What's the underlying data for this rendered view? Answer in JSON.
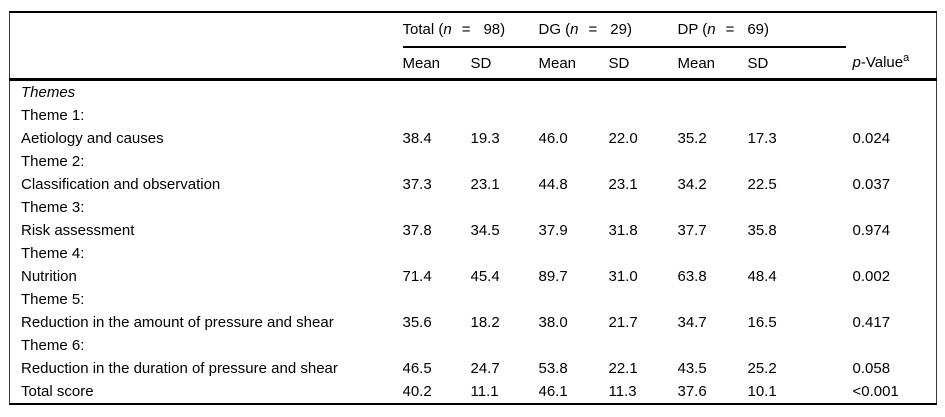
{
  "table": {
    "header": {
      "groups": [
        {
          "prefix": "Total (",
          "var": "n",
          "eq": "=",
          "count": "98)"
        },
        {
          "prefix": "DG (",
          "var": "n",
          "eq": "=",
          "count": "29)"
        },
        {
          "prefix": "DP (",
          "var": "n",
          "eq": "=",
          "count": "69)"
        }
      ],
      "sub": [
        "Mean",
        "SD",
        "Mean",
        "SD",
        "Mean",
        "SD"
      ],
      "p_value": {
        "italic": "p",
        "text": "-Value",
        "sup": "a"
      }
    },
    "rows": [
      {
        "label": "Themes",
        "values": [
          "",
          "",
          "",
          "",
          "",
          "",
          ""
        ]
      },
      {
        "label": "Theme 1:",
        "values": [
          "",
          "",
          "",
          "",
          "",
          "",
          ""
        ]
      },
      {
        "label": "Aetiology and causes",
        "values": [
          "38.4",
          "19.3",
          "46.0",
          "22.0",
          "35.2",
          "17.3",
          "0.024"
        ]
      },
      {
        "label": "Theme 2:",
        "values": [
          "",
          "",
          "",
          "",
          "",
          "",
          ""
        ]
      },
      {
        "label": "Classification and observation",
        "values": [
          "37.3",
          "23.1",
          "44.8",
          "23.1",
          "34.2",
          "22.5",
          "0.037"
        ]
      },
      {
        "label": "Theme 3:",
        "values": [
          "",
          "",
          "",
          "",
          "",
          "",
          ""
        ]
      },
      {
        "label": "Risk assessment",
        "values": [
          "37.8",
          "34.5",
          "37.9",
          "31.8",
          "37.7",
          "35.8",
          "0.974"
        ]
      },
      {
        "label": "Theme 4:",
        "values": [
          "",
          "",
          "",
          "",
          "",
          "",
          ""
        ]
      },
      {
        "label": "Nutrition",
        "values": [
          "71.4",
          "45.4",
          "89.7",
          "31.0",
          "63.8",
          "48.4",
          "0.002"
        ]
      },
      {
        "label": "Theme 5:",
        "values": [
          "",
          "",
          "",
          "",
          "",
          "",
          ""
        ]
      },
      {
        "label": "Reduction in the amount of pressure and shear",
        "values": [
          "35.6",
          "18.2",
          "38.0",
          "21.7",
          "34.7",
          "16.5",
          "0.417"
        ]
      },
      {
        "label": "Theme 6:",
        "values": [
          "",
          "",
          "",
          "",
          "",
          "",
          ""
        ]
      },
      {
        "label": "Reduction in the duration of pressure and shear",
        "values": [
          "46.5",
          "24.7",
          "53.8",
          "22.1",
          "43.5",
          "25.2",
          "0.058"
        ]
      },
      {
        "label": "Total score",
        "values": [
          "40.2",
          "11.1",
          "46.1",
          "11.3",
          "37.6",
          "10.1",
          "<0.001"
        ]
      }
    ]
  }
}
